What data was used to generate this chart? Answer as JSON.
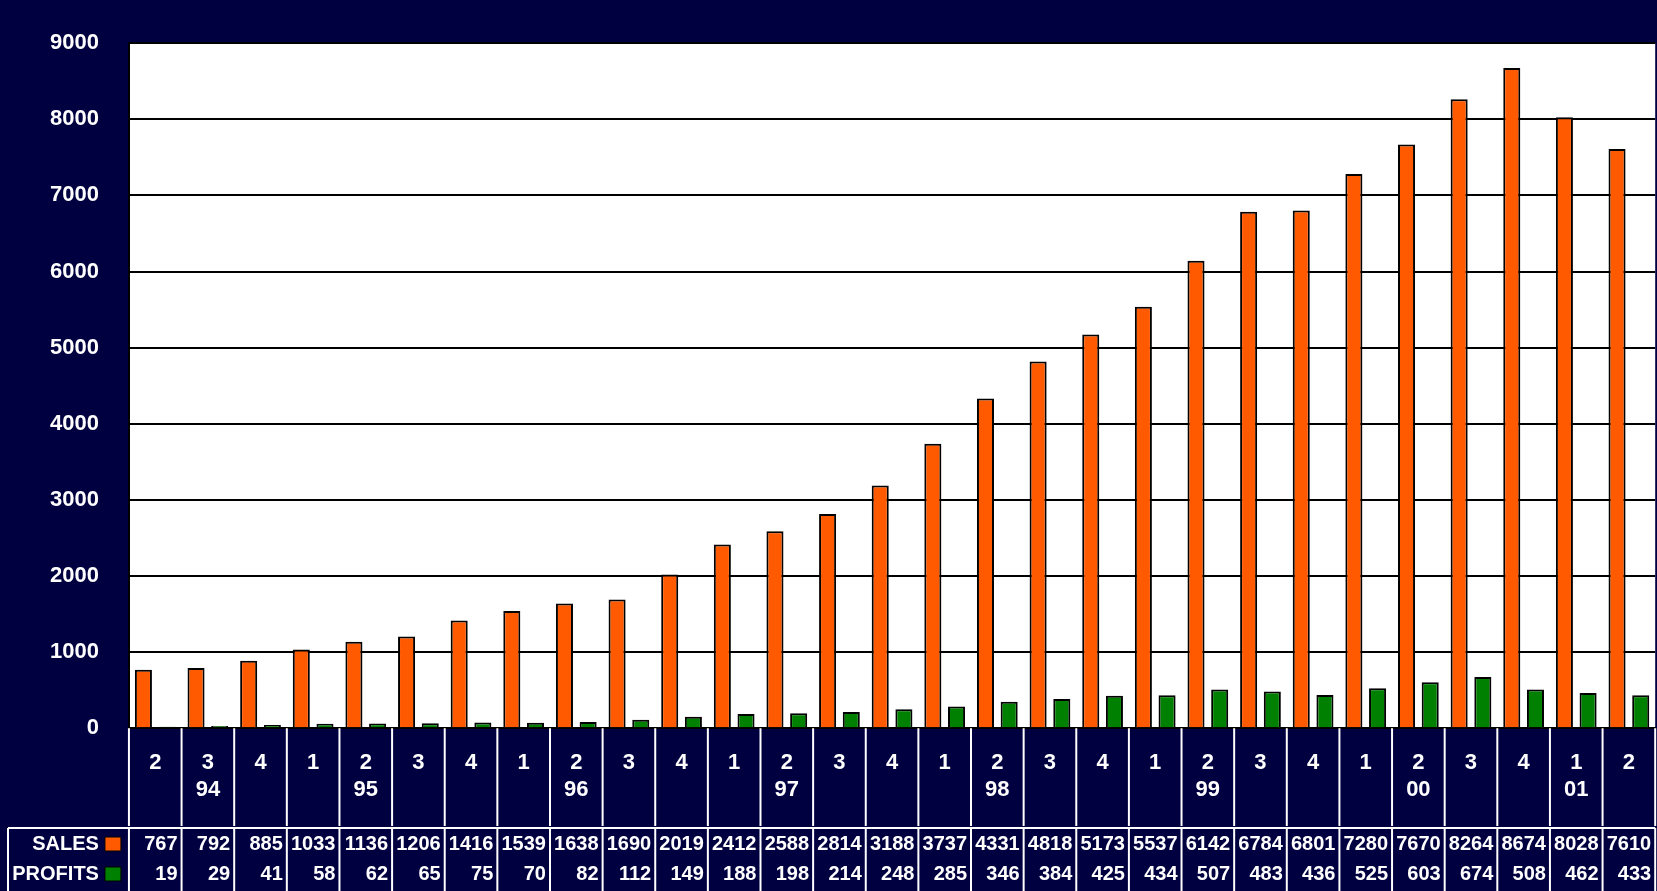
{
  "chart_data": {
    "type": "bar",
    "categories": [
      "2",
      "3\n94",
      "4",
      "1",
      "2\n95",
      "3",
      "4",
      "1",
      "2\n96",
      "3",
      "4",
      "1",
      "2\n97",
      "3",
      "4",
      "1",
      "2\n98",
      "3",
      "4",
      "1",
      "2\n99",
      "3",
      "4",
      "1",
      "2\n00",
      "3",
      "4",
      "1\n01",
      "2"
    ],
    "series": [
      {
        "name": "SALES",
        "color": "#ff5a00",
        "values": [
          767,
          792,
          885,
          1033,
          1136,
          1206,
          1416,
          1539,
          1638,
          1690,
          2019,
          2412,
          2588,
          2814,
          3188,
          3737,
          4331,
          4818,
          5173,
          5537,
          6142,
          6784,
          6801,
          7280,
          7670,
          8264,
          8674,
          8028,
          7610
        ]
      },
      {
        "name": "PROFITS",
        "color": "#008000",
        "values": [
          19,
          29,
          41,
          58,
          62,
          65,
          75,
          70,
          82,
          112,
          149,
          188,
          198,
          214,
          248,
          285,
          346,
          384,
          425,
          434,
          507,
          483,
          436,
          525,
          603,
          674,
          508,
          462,
          433
        ]
      }
    ],
    "ylim": [
      0,
      9000
    ],
    "yticks": [
      0,
      1000,
      2000,
      3000,
      4000,
      5000,
      6000,
      7000,
      8000,
      9000
    ],
    "grid": "y",
    "data_labels": true,
    "legend": "bottom left"
  }
}
